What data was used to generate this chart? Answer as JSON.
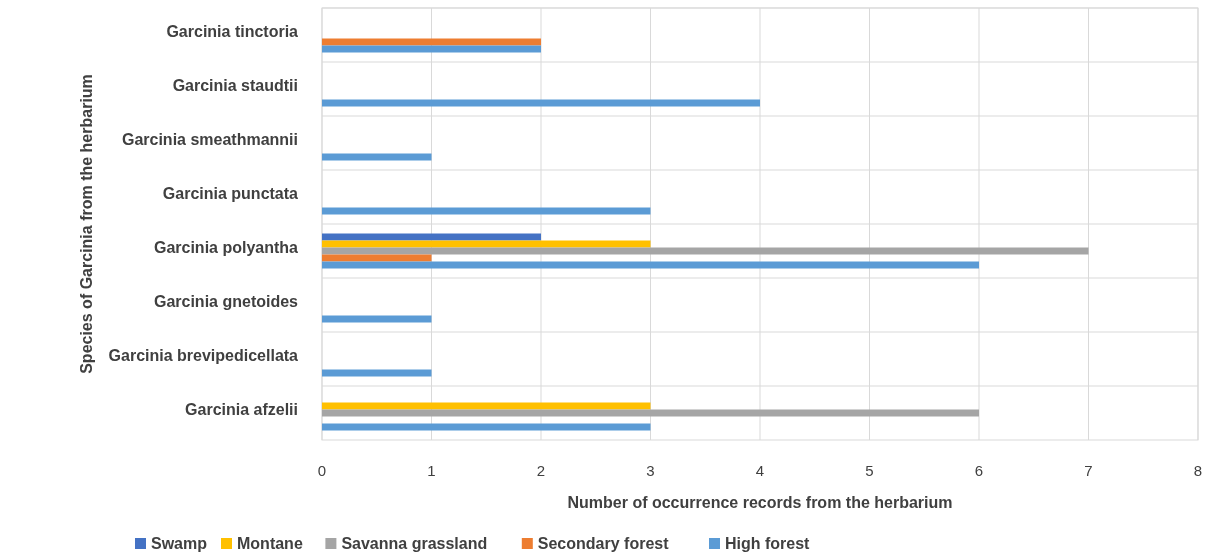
{
  "chart_data": {
    "type": "bar",
    "orientation": "horizontal",
    "xlabel": "Number of occurrence records from the herbarium",
    "ylabel": "Species of Garcinia  from the herbarium",
    "categories": [
      "Garcinia tinctoria",
      "Garcinia staudtii",
      "Garcinia smeathmannii",
      "Garcinia punctata",
      "Garcinia polyantha",
      "Garcinia gnetoides",
      "Garcinia brevipedicellata",
      "Garcinia afzelii"
    ],
    "series": [
      {
        "name": "Swamp",
        "color": "#4472c4",
        "values": [
          null,
          null,
          null,
          null,
          2,
          null,
          null,
          null
        ]
      },
      {
        "name": "Montane",
        "color": "#ffc000",
        "values": [
          null,
          null,
          null,
          null,
          3,
          null,
          null,
          3
        ]
      },
      {
        "name": "Savanna grassland",
        "color": "#a5a5a5",
        "values": [
          null,
          null,
          null,
          null,
          7,
          null,
          null,
          6
        ]
      },
      {
        "name": "Secondary forest",
        "color": "#ed7d31",
        "values": [
          2,
          null,
          null,
          null,
          1,
          null,
          null,
          null
        ]
      },
      {
        "name": "High forest",
        "color": "#5b9bd5",
        "values": [
          2,
          4,
          1,
          3,
          6,
          1,
          1,
          3
        ]
      }
    ],
    "xlim": [
      0,
      8
    ],
    "xticks": [
      0,
      1,
      2,
      3,
      4,
      5,
      6,
      7,
      8
    ],
    "grid": true,
    "legend": "bottom"
  }
}
